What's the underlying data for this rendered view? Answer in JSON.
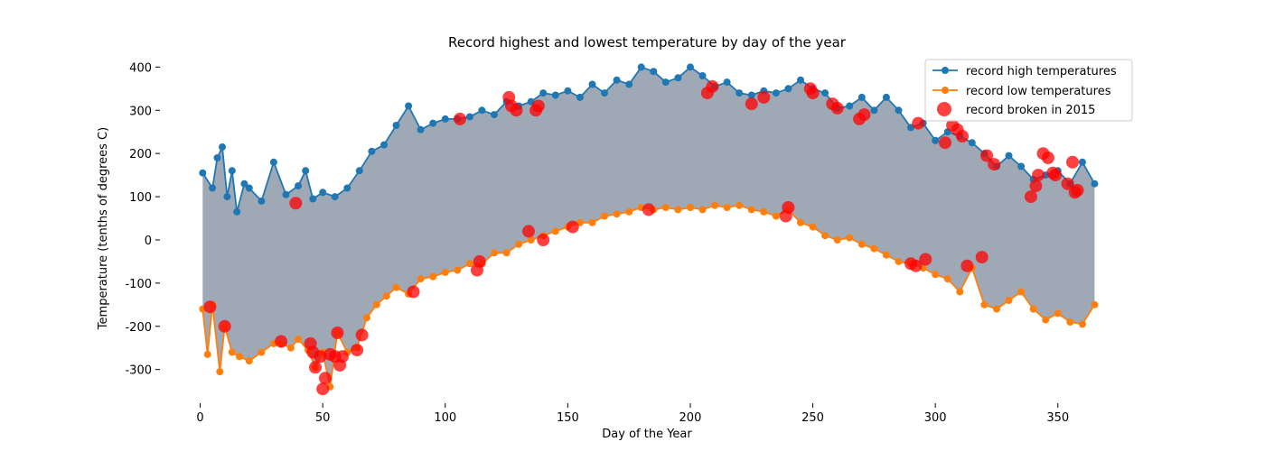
{
  "chart_data": {
    "type": "line",
    "title": "Record highest and lowest temperature by day of the year",
    "xlabel": "Day of the Year",
    "ylabel": "Temperature (tenths of degrees C)",
    "xlim": [
      -5,
      370
    ],
    "ylim": [
      -380,
      430
    ],
    "xticks": [
      0,
      50,
      100,
      150,
      200,
      250,
      300,
      350
    ],
    "yticks": [
      -300,
      -200,
      -100,
      0,
      100,
      200,
      300,
      400
    ],
    "fill_color": "#9ea9b5",
    "legend": {
      "position": "top-right",
      "entries": [
        {
          "label": "record high temperatures",
          "color": "#1f77b4",
          "kind": "line-marker"
        },
        {
          "label": "record low temperatures",
          "color": "#ff7f0e",
          "kind": "line-marker"
        },
        {
          "label": "record broken in 2015",
          "color": "#ff0000",
          "kind": "scatter"
        }
      ]
    },
    "series": [
      {
        "name": "record high temperatures",
        "color": "#1f77b4",
        "x": [
          1,
          5,
          7,
          9,
          11,
          13,
          15,
          18,
          20,
          25,
          30,
          35,
          40,
          43,
          46,
          50,
          55,
          60,
          65,
          70,
          75,
          80,
          85,
          90,
          95,
          100,
          105,
          110,
          115,
          120,
          125,
          130,
          135,
          140,
          145,
          150,
          155,
          160,
          165,
          170,
          175,
          180,
          185,
          190,
          195,
          200,
          205,
          210,
          215,
          220,
          225,
          230,
          235,
          240,
          245,
          250,
          255,
          260,
          265,
          270,
          275,
          280,
          285,
          290,
          295,
          300,
          305,
          310,
          315,
          320,
          325,
          330,
          335,
          340,
          345,
          350,
          355,
          360,
          365
        ],
        "values": [
          155,
          120,
          190,
          215,
          100,
          160,
          65,
          130,
          120,
          90,
          180,
          105,
          125,
          160,
          95,
          110,
          100,
          120,
          160,
          205,
          220,
          265,
          310,
          255,
          270,
          280,
          280,
          285,
          300,
          290,
          320,
          310,
          320,
          340,
          335,
          345,
          330,
          360,
          340,
          370,
          360,
          400,
          390,
          365,
          375,
          400,
          380,
          355,
          365,
          340,
          335,
          345,
          340,
          350,
          370,
          350,
          340,
          305,
          310,
          330,
          300,
          330,
          300,
          260,
          270,
          230,
          250,
          240,
          225,
          200,
          170,
          195,
          170,
          140,
          150,
          160,
          130,
          180,
          130
        ]
      },
      {
        "name": "record low temperatures",
        "color": "#ff7f0e",
        "x": [
          1,
          3,
          5,
          8,
          10,
          13,
          16,
          20,
          25,
          30,
          33,
          37,
          40,
          44,
          47,
          50,
          53,
          56,
          60,
          64,
          68,
          72,
          76,
          80,
          85,
          90,
          95,
          100,
          105,
          110,
          115,
          120,
          125,
          130,
          135,
          140,
          145,
          150,
          155,
          160,
          165,
          170,
          175,
          180,
          185,
          190,
          195,
          200,
          205,
          210,
          215,
          220,
          225,
          230,
          235,
          240,
          245,
          250,
          255,
          260,
          265,
          270,
          275,
          280,
          285,
          290,
          295,
          300,
          305,
          310,
          315,
          320,
          325,
          330,
          335,
          340,
          345,
          350,
          355,
          360,
          365
        ],
        "values": [
          -160,
          -265,
          -150,
          -305,
          -200,
          -260,
          -270,
          -280,
          -260,
          -240,
          -240,
          -250,
          -230,
          -255,
          -295,
          -260,
          -340,
          -215,
          -260,
          -250,
          -180,
          -150,
          -130,
          -110,
          -125,
          -90,
          -85,
          -75,
          -70,
          -55,
          -55,
          -30,
          -30,
          -10,
          0,
          10,
          20,
          30,
          40,
          40,
          55,
          60,
          65,
          75,
          70,
          75,
          70,
          75,
          70,
          80,
          75,
          80,
          70,
          65,
          55,
          70,
          40,
          30,
          10,
          0,
          5,
          -10,
          -20,
          -35,
          -50,
          -55,
          -65,
          -80,
          -90,
          -120,
          -65,
          -150,
          -160,
          -140,
          -120,
          -160,
          -185,
          -170,
          -190,
          -195,
          -150
        ]
      },
      {
        "name": "record broken in 2015",
        "color": "#ff0000",
        "type": "scatter",
        "x": [
          4,
          10,
          33,
          39,
          45,
          46,
          47,
          49,
          50,
          51,
          53,
          55,
          56,
          57,
          58,
          64,
          66,
          87,
          106,
          113,
          114,
          126,
          127,
          129,
          134,
          137,
          138,
          140,
          152,
          183,
          207,
          209,
          225,
          230,
          239,
          240,
          249,
          250,
          258,
          260,
          269,
          271,
          290,
          292,
          293,
          296,
          304,
          307,
          309,
          311,
          313,
          319,
          321,
          324,
          339,
          341,
          342,
          344,
          346,
          348,
          349,
          354,
          356,
          357,
          358
        ],
        "values": [
          -155,
          -200,
          -235,
          85,
          -240,
          -260,
          -295,
          -270,
          -345,
          -320,
          -265,
          -270,
          -215,
          -290,
          -270,
          -255,
          -220,
          -120,
          280,
          -70,
          -50,
          330,
          310,
          300,
          20,
          300,
          310,
          0,
          30,
          70,
          340,
          355,
          315,
          330,
          55,
          75,
          350,
          340,
          315,
          305,
          280,
          290,
          -55,
          -60,
          270,
          -45,
          225,
          265,
          255,
          240,
          -60,
          -40,
          195,
          175,
          100,
          125,
          150,
          200,
          190,
          155,
          150,
          130,
          180,
          110,
          115
        ]
      }
    ]
  }
}
